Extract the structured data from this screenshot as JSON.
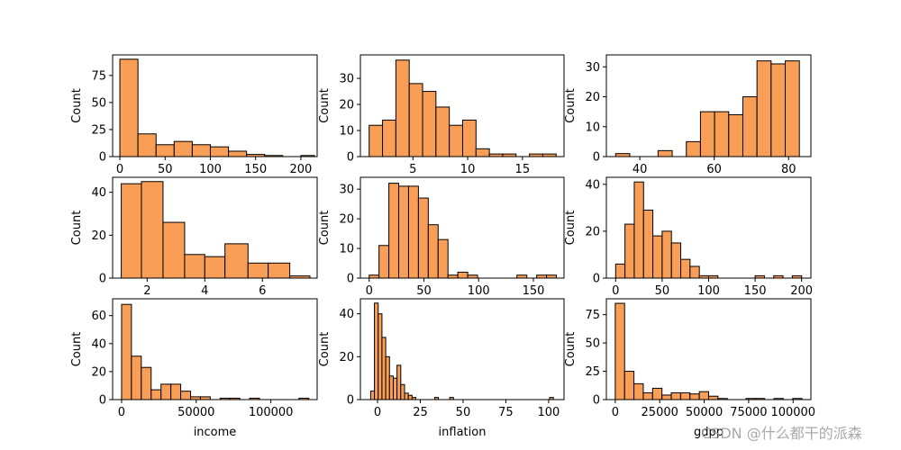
{
  "chart_data": [
    {
      "type": "histogram",
      "xlabel": "",
      "ylabel": "Count",
      "xticks": [
        "0",
        "50",
        "100",
        "150",
        "200"
      ],
      "yticks": [
        "0",
        "25",
        "50",
        "75"
      ],
      "xlim": [
        -8,
        218
      ],
      "ylim": [
        0,
        94
      ],
      "bins": [
        0,
        20,
        40,
        60,
        80,
        100,
        120,
        140,
        160,
        180,
        200,
        215
      ],
      "counts": [
        90,
        21,
        11,
        14,
        11,
        9,
        5,
        2,
        1,
        0,
        1
      ]
    },
    {
      "type": "histogram",
      "xlabel": "",
      "ylabel": "Count",
      "xticks": [
        "5",
        "10",
        "15"
      ],
      "yticks": [
        "0",
        "10",
        "20",
        "30"
      ],
      "xlim": [
        0.2,
        18.8
      ],
      "ylim": [
        0,
        39
      ],
      "bins": [
        1,
        2.22,
        3.44,
        4.66,
        5.88,
        7.1,
        8.32,
        9.54,
        10.76,
        11.98,
        13.2,
        14.42,
        15.64,
        16.86,
        18.08
      ],
      "counts": [
        12,
        14,
        37,
        28,
        25,
        19,
        12,
        14,
        3,
        1,
        1,
        0,
        1,
        1
      ]
    },
    {
      "type": "histogram",
      "xlabel": "",
      "ylabel": "Count",
      "xticks": [
        "40",
        "60",
        "80"
      ],
      "yticks": [
        "0",
        "10",
        "20",
        "30"
      ],
      "xlim": [
        31,
        86
      ],
      "ylim": [
        0,
        34
      ],
      "bins": [
        33.5,
        37.3,
        41.1,
        44.9,
        48.7,
        52.5,
        56.3,
        60.1,
        63.9,
        67.7,
        71.5,
        75.3,
        79.1,
        82.9
      ],
      "counts": [
        1,
        0,
        0,
        2,
        0,
        5,
        15,
        15,
        14,
        20,
        32,
        31,
        32
      ]
    },
    {
      "type": "histogram",
      "xlabel": "",
      "ylabel": "Count",
      "xticks": [
        "2",
        "4",
        "6"
      ],
      "yticks": [
        "0",
        "20",
        "40"
      ],
      "xlim": [
        0.8,
        7.9
      ],
      "ylim": [
        0,
        47
      ],
      "bins": [
        1.1,
        1.8,
        2.55,
        3.3,
        4.0,
        4.7,
        5.5,
        6.2,
        6.95,
        7.65
      ],
      "counts": [
        44,
        45,
        26,
        11,
        10,
        16,
        7,
        7,
        1
      ]
    },
    {
      "type": "histogram",
      "xlabel": "",
      "ylabel": "Count",
      "xticks": [
        "0",
        "50",
        "100",
        "150"
      ],
      "yticks": [
        "0",
        "10",
        "20",
        "30"
      ],
      "xlim": [
        -8,
        178
      ],
      "ylim": [
        0,
        34
      ],
      "bins": [
        0,
        9,
        18,
        27,
        36,
        45,
        54,
        63,
        72,
        81,
        90,
        99,
        108,
        117,
        126,
        135,
        144,
        153,
        162,
        171
      ],
      "counts": [
        1,
        11,
        32,
        31,
        31,
        27,
        18,
        13,
        1,
        2,
        1,
        0,
        0,
        0,
        0,
        1,
        0,
        1,
        1
      ]
    },
    {
      "type": "histogram",
      "xlabel": "",
      "ylabel": "Count",
      "xticks": [
        "0",
        "50",
        "100",
        "150",
        "200"
      ],
      "yticks": [
        "0",
        "20",
        "40"
      ],
      "xlim": [
        -10,
        210
      ],
      "ylim": [
        0,
        43
      ],
      "bins": [
        0,
        10,
        20,
        30,
        40,
        50,
        60,
        70,
        80,
        90,
        100,
        110,
        120,
        130,
        140,
        150,
        160,
        170,
        180,
        190,
        200
      ],
      "counts": [
        6,
        23,
        41,
        29,
        18,
        20,
        15,
        8,
        5,
        1,
        1,
        0,
        0,
        0,
        0,
        1,
        0,
        1,
        0,
        1
      ]
    },
    {
      "type": "histogram",
      "xlabel": "income",
      "ylabel": "Count",
      "xticks": [
        "0",
        "50000",
        "100000"
      ],
      "yticks": [
        "0",
        "20",
        "40",
        "60"
      ],
      "xlim": [
        -6000,
        131000
      ],
      "ylim": [
        0,
        72
      ],
      "bins": [
        0,
        6600,
        13200,
        19800,
        26400,
        33000,
        39600,
        46200,
        52800,
        59400,
        66000,
        72600,
        79200,
        85800,
        92400,
        99000,
        105600,
        112200,
        118800,
        125400
      ],
      "counts": [
        68,
        31,
        23,
        7,
        11,
        11,
        6,
        2,
        2,
        0,
        1,
        1,
        0,
        1,
        0,
        0,
        0,
        0,
        1
      ]
    },
    {
      "type": "histogram",
      "xlabel": "inflation",
      "ylabel": "Count",
      "xticks": [
        "0",
        "25",
        "50",
        "75",
        "100"
      ],
      "yticks": [
        "0",
        "20",
        "40"
      ],
      "xlim": [
        -10,
        109
      ],
      "ylim": [
        0,
        47
      ],
      "bins": [
        -4,
        -1.8,
        0.4,
        2.6,
        4.8,
        7,
        9.2,
        11.4,
        13.6,
        15.8,
        18,
        20.2,
        22.4,
        24.6,
        26.8,
        29,
        31.2,
        33.4,
        35.6,
        37.8,
        40,
        42.2,
        44.4,
        46.6,
        48.8,
        51,
        100.6,
        102.8,
        104
      ],
      "counts": [
        4,
        45,
        40,
        29,
        20,
        11,
        10,
        16,
        7,
        3,
        2,
        1,
        0,
        0,
        0,
        0,
        0,
        1,
        0,
        0,
        0,
        1,
        0,
        0,
        0,
        0,
        1,
        0
      ]
    },
    {
      "type": "histogram",
      "xlabel": "gdpp",
      "ylabel": "Count",
      "xticks": [
        "0",
        "25000",
        "50000",
        "75000",
        "100000"
      ],
      "yticks": [
        "0",
        "25",
        "50",
        "75"
      ],
      "xlim": [
        -5000,
        110000
      ],
      "ylim": [
        0,
        89
      ],
      "bins": [
        0,
        5250,
        10500,
        15750,
        21000,
        26250,
        31500,
        36750,
        42000,
        47250,
        52500,
        57750,
        63000,
        68250,
        73500,
        78750,
        84000,
        89250,
        94500,
        99750,
        105000
      ],
      "counts": [
        85,
        25,
        14,
        6,
        10,
        4,
        6,
        6,
        5,
        7,
        3,
        1,
        0,
        0,
        1,
        1,
        0,
        1,
        0,
        1
      ]
    }
  ],
  "watermark": "CSDN @什么都干的派森",
  "colors": {
    "bar_fill": "#f99e57",
    "bar_edge": "#000000",
    "axis": "#000000"
  }
}
